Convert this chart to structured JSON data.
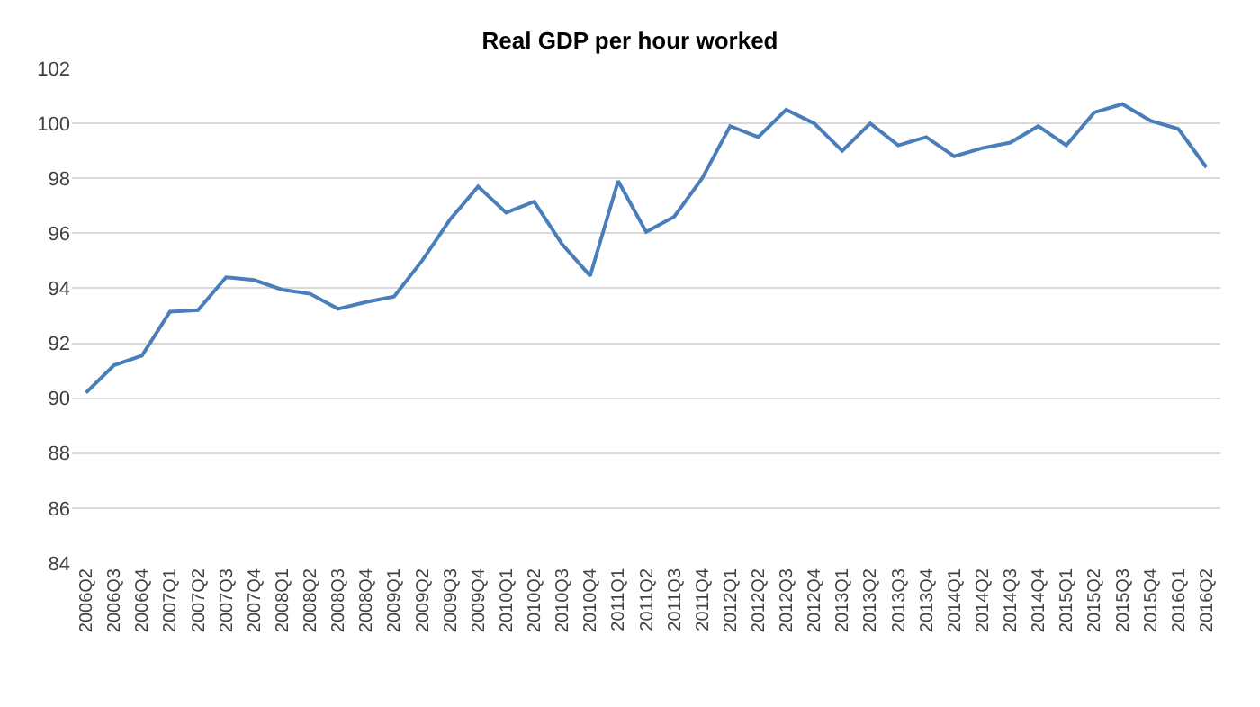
{
  "chart_data": {
    "type": "line",
    "title": "Real GDP per hour worked",
    "categories": [
      "2006Q2",
      "2006Q3",
      "2006Q4",
      "2007Q1",
      "2007Q2",
      "2007Q3",
      "2007Q4",
      "2008Q1",
      "2008Q2",
      "2008Q3",
      "2008Q4",
      "2009Q1",
      "2009Q2",
      "2009Q3",
      "2009Q4",
      "2010Q1",
      "2010Q2",
      "2010Q3",
      "2010Q4",
      "2011Q1",
      "2011Q2",
      "2011Q3",
      "2011Q4",
      "2012Q1",
      "2012Q2",
      "2012Q3",
      "2012Q4",
      "2013Q1",
      "2013Q2",
      "2013Q3",
      "2013Q4",
      "2014Q1",
      "2014Q2",
      "2014Q3",
      "2014Q4",
      "2015Q1",
      "2015Q2",
      "2015Q3",
      "2015Q4",
      "2016Q1",
      "2016Q2"
    ],
    "series": [
      {
        "color": "#4a7ebb",
        "values": [
          90.2,
          91.2,
          91.55,
          93.15,
          93.2,
          94.4,
          94.3,
          93.95,
          93.8,
          93.25,
          93.5,
          93.7,
          95.0,
          96.5,
          97.7,
          96.75,
          97.15,
          95.6,
          94.45,
          97.9,
          96.05,
          96.6,
          98.0,
          99.9,
          99.5,
          100.5,
          100.0,
          99.0,
          100.0,
          99.2,
          99.5,
          98.8,
          99.1,
          99.3,
          99.9,
          99.2,
          100.4,
          100.7,
          100.1,
          99.8,
          98.4
        ]
      }
    ],
    "ylim": [
      84,
      102
    ],
    "yticks": [
      84,
      86,
      88,
      90,
      92,
      94,
      96,
      98,
      100,
      102
    ],
    "grid": "y",
    "marker": "none",
    "line_style": "solid"
  }
}
